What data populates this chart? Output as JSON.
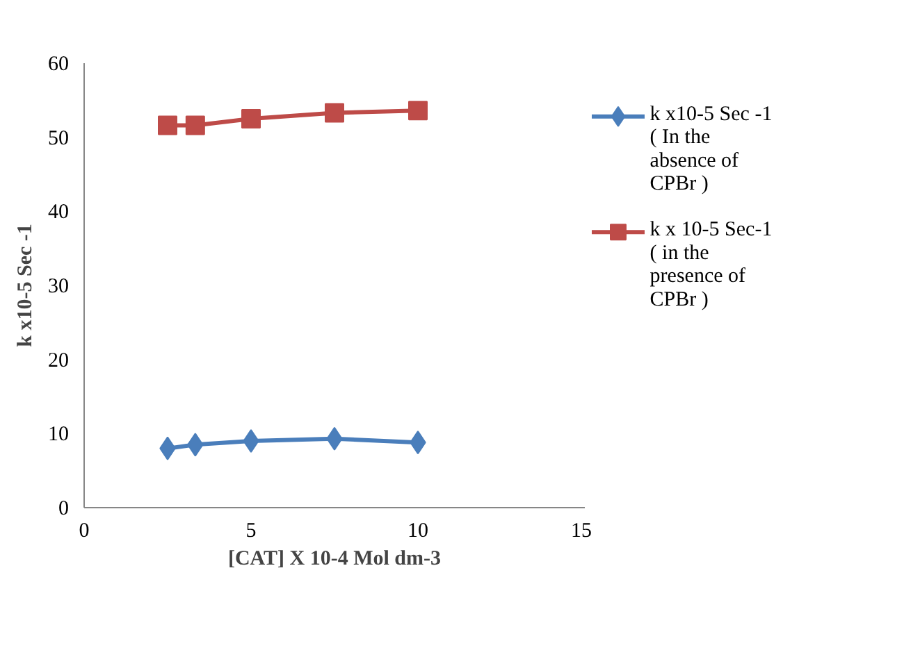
{
  "chart_data": {
    "type": "line",
    "xlabel": "[CAT] X 10-4 Mol dm-3",
    "ylabel": "k x10-5 Sec -1",
    "x": [
      2.5,
      3.33,
      5,
      7.5,
      10
    ],
    "series": [
      {
        "name": "k x10-5 Sec -1 ( In the absence of CPBr )",
        "color": "#4a7ebb",
        "marker": "diamond",
        "values": [
          8.0,
          8.5,
          9.0,
          9.3,
          8.8
        ]
      },
      {
        "name": "k x 10-5 Sec-1 ( in the presence of CPBr )",
        "color": "#be4b48",
        "marker": "square",
        "values": [
          51.6,
          51.6,
          52.5,
          53.3,
          53.6
        ]
      }
    ],
    "xlim": [
      0,
      15
    ],
    "xticks": [
      0,
      5,
      10,
      15
    ],
    "ylim": [
      0,
      60
    ],
    "yticks": [
      0,
      10,
      20,
      30,
      40,
      50,
      60
    ],
    "grid": false,
    "legend": "right"
  }
}
